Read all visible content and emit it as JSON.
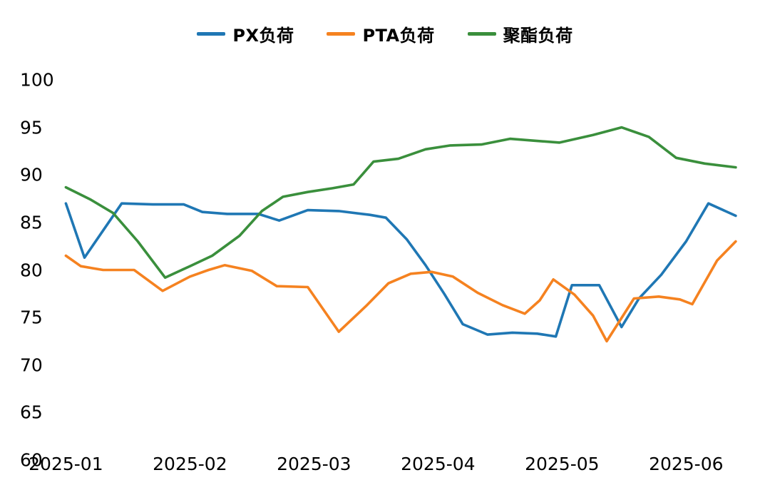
{
  "chart_data": {
    "type": "line",
    "title": "",
    "grid": false,
    "legend_position": "top-center",
    "background": "#ffffff",
    "x_axis": {
      "label": "",
      "range": [
        -0.1,
        5.55
      ],
      "tick_positions": [
        0,
        1,
        2,
        3,
        4,
        5
      ],
      "tick_labels": [
        "2025-01",
        "2025-02",
        "2025-03",
        "2025-04",
        "2025-05",
        "2025-06"
      ]
    },
    "y_axis": {
      "label": "",
      "range": [
        60,
        100
      ],
      "tick_values": [
        100,
        95,
        90,
        85,
        80,
        75,
        70,
        65,
        60
      ],
      "tick_labels": [
        "100",
        "95",
        "90",
        "85",
        "80",
        "75",
        "70",
        "65",
        "60"
      ]
    },
    "series": [
      {
        "name": "PX负荷",
        "color": "#1f77b4",
        "points": [
          [
            0.0,
            87.0
          ],
          [
            0.15,
            81.3
          ],
          [
            0.45,
            87.0
          ],
          [
            0.7,
            86.9
          ],
          [
            0.95,
            86.9
          ],
          [
            1.1,
            86.1
          ],
          [
            1.3,
            85.9
          ],
          [
            1.55,
            85.9
          ],
          [
            1.72,
            85.2
          ],
          [
            1.95,
            86.3
          ],
          [
            2.2,
            86.2
          ],
          [
            2.45,
            85.8
          ],
          [
            2.58,
            85.5
          ],
          [
            2.75,
            83.2
          ],
          [
            2.9,
            80.5
          ],
          [
            3.05,
            77.5
          ],
          [
            3.2,
            74.3
          ],
          [
            3.4,
            73.2
          ],
          [
            3.6,
            73.4
          ],
          [
            3.8,
            73.3
          ],
          [
            3.95,
            73.0
          ],
          [
            4.08,
            78.4
          ],
          [
            4.3,
            78.4
          ],
          [
            4.48,
            74.0
          ],
          [
            4.62,
            77.0
          ],
          [
            4.8,
            79.5
          ],
          [
            5.0,
            83.0
          ],
          [
            5.18,
            87.0
          ],
          [
            5.4,
            85.7
          ]
        ]
      },
      {
        "name": "PTA负荷",
        "color": "#f58220",
        "points": [
          [
            0.0,
            81.5
          ],
          [
            0.12,
            80.4
          ],
          [
            0.3,
            80.0
          ],
          [
            0.55,
            80.0
          ],
          [
            0.78,
            77.8
          ],
          [
            1.0,
            79.3
          ],
          [
            1.15,
            80.0
          ],
          [
            1.28,
            80.5
          ],
          [
            1.5,
            79.9
          ],
          [
            1.7,
            78.3
          ],
          [
            1.95,
            78.2
          ],
          [
            2.2,
            73.5
          ],
          [
            2.42,
            76.2
          ],
          [
            2.6,
            78.6
          ],
          [
            2.78,
            79.6
          ],
          [
            2.95,
            79.8
          ],
          [
            3.12,
            79.3
          ],
          [
            3.32,
            77.6
          ],
          [
            3.52,
            76.3
          ],
          [
            3.7,
            75.4
          ],
          [
            3.82,
            76.8
          ],
          [
            3.93,
            79.0
          ],
          [
            4.1,
            77.4
          ],
          [
            4.25,
            75.2
          ],
          [
            4.36,
            72.5
          ],
          [
            4.58,
            77.0
          ],
          [
            4.78,
            77.2
          ],
          [
            4.95,
            76.9
          ],
          [
            5.05,
            76.4
          ],
          [
            5.25,
            81.0
          ],
          [
            5.4,
            83.0
          ]
        ]
      },
      {
        "name": "聚酯负荷",
        "color": "#3a8f3c",
        "points": [
          [
            0.0,
            88.7
          ],
          [
            0.2,
            87.4
          ],
          [
            0.38,
            86.0
          ],
          [
            0.58,
            83.0
          ],
          [
            0.8,
            79.2
          ],
          [
            1.0,
            80.4
          ],
          [
            1.18,
            81.5
          ],
          [
            1.4,
            83.6
          ],
          [
            1.58,
            86.2
          ],
          [
            1.75,
            87.7
          ],
          [
            1.95,
            88.2
          ],
          [
            2.15,
            88.6
          ],
          [
            2.32,
            89.0
          ],
          [
            2.48,
            91.4
          ],
          [
            2.68,
            91.7
          ],
          [
            2.9,
            92.7
          ],
          [
            3.1,
            93.1
          ],
          [
            3.35,
            93.2
          ],
          [
            3.58,
            93.8
          ],
          [
            3.78,
            93.6
          ],
          [
            3.98,
            93.4
          ],
          [
            4.25,
            94.2
          ],
          [
            4.48,
            95.0
          ],
          [
            4.7,
            94.0
          ],
          [
            4.92,
            91.8
          ],
          [
            5.15,
            91.2
          ],
          [
            5.4,
            90.8
          ]
        ]
      }
    ]
  }
}
